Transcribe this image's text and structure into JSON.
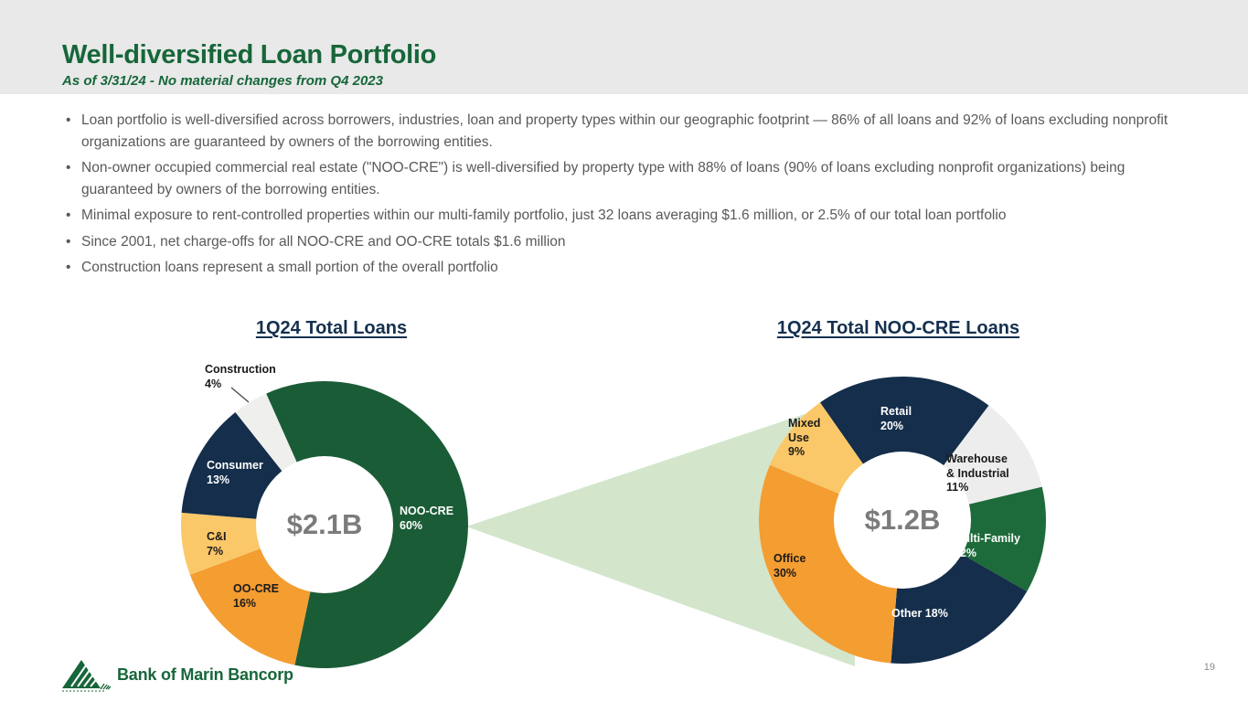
{
  "header": {
    "title": "Well-diversified Loan Portfolio",
    "subtitle": "As of 3/31/24 - No material changes from Q4 2023"
  },
  "bullets": [
    "Loan portfolio is well-diversified across borrowers, industries, loan and property types within our geographic footprint — 86% of all loans and 92% of loans excluding nonprofit organizations are guaranteed by owners of the borrowing entities.",
    "Non-owner occupied commercial real estate (\"NOO-CRE\") is well-diversified by property type with 88% of loans (90% of loans excluding nonprofit organizations) being guaranteed by owners of the borrowing entities.",
    "Minimal exposure to rent-controlled properties within our multi-family portfolio, just 32 loans averaging $1.6 million, or 2.5% of our total loan portfolio",
    "Since 2001, net charge-offs for all NOO-CRE and OO-CRE totals $1.6 million",
    "Construction loans represent a small portion of the overall portfolio"
  ],
  "chart_data": [
    {
      "type": "pie",
      "subtype": "donut",
      "title": "1Q24 Total Loans",
      "center_label": "$2.1B",
      "start_angle_deg": -24,
      "slices": [
        {
          "label": "NOO-CRE",
          "value": 60,
          "color": "#1a5c36",
          "display_lines": [
            "NOO-CRE",
            "60%"
          ]
        },
        {
          "label": "OO-CRE",
          "value": 16,
          "color": "#f49d31",
          "display_lines": [
            "OO-CRE",
            "16%"
          ]
        },
        {
          "label": "C&I",
          "value": 7,
          "color": "#fbc869",
          "display_lines": [
            "C&I",
            "7%"
          ]
        },
        {
          "label": "Consumer",
          "value": 13,
          "color": "#142e4b",
          "display_lines": [
            "Consumer",
            "13%"
          ]
        },
        {
          "label": "Construction",
          "value": 4,
          "color": "#efefee",
          "display_lines": [
            "Construction",
            "4%"
          ]
        }
      ]
    },
    {
      "type": "pie",
      "subtype": "donut",
      "title": "1Q24 Total NOO-CRE Loans",
      "center_label": "$1.2B",
      "start_angle_deg": -35,
      "slices": [
        {
          "label": "Retail",
          "value": 20,
          "color": "#142e4b",
          "display_lines": [
            "Retail",
            "20%"
          ]
        },
        {
          "label": "Warehouse & Industrial",
          "value": 11,
          "color": "#ededee",
          "display_lines": [
            "Warehouse",
            "& Industrial",
            "11%"
          ]
        },
        {
          "label": "Multi-Family",
          "value": 12,
          "color": "#1d6b3a",
          "display_lines": [
            "Multi-Family",
            "12%"
          ]
        },
        {
          "label": "Other",
          "value": 18,
          "color": "#142e4b",
          "display_lines": [
            "Other 18%"
          ]
        },
        {
          "label": "Office",
          "value": 30,
          "color": "#f49d31",
          "display_lines": [
            "Office",
            "30%"
          ]
        },
        {
          "label": "Mixed Use",
          "value": 9,
          "color": "#fbc869",
          "display_lines": [
            "Mixed",
            "Use",
            "9%"
          ]
        }
      ]
    }
  ],
  "colors": {
    "header_bg": "#e8e9e8",
    "title_green": "#17663a",
    "bullet_text": "#595959",
    "chart_title_navy": "#15304f",
    "center_label_gray": "#7b7b7b",
    "funnel_green": "#d3e6cc",
    "logo_green": "#17663a"
  },
  "footer": {
    "logo_text": "Bank of Marin Bancorp",
    "page_number": "19"
  }
}
